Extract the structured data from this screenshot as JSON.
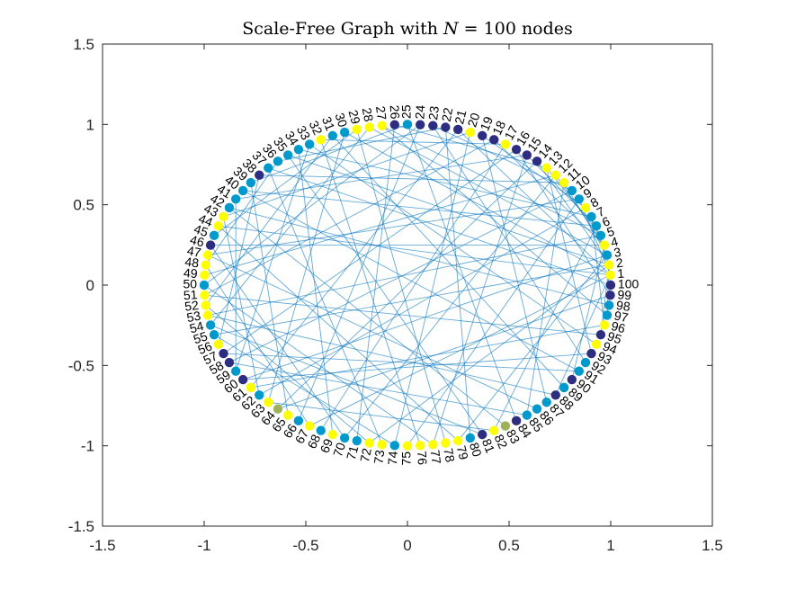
{
  "chart_data": {
    "type": "scatter",
    "title": {
      "prefix": "Scale-Free Graph with ",
      "variable": "N",
      "suffix": " = 100 nodes"
    },
    "xlabel": "",
    "ylabel": "",
    "xlim": [
      -1.5,
      1.5
    ],
    "ylim": [
      -1.5,
      1.5
    ],
    "xticks": [
      -1.5,
      -1,
      -0.5,
      0,
      0.5,
      1,
      1.5
    ],
    "xtick_labels": [
      "-1.5",
      "-1",
      "-0.5",
      "0",
      "0.5",
      "1",
      "1.5"
    ],
    "yticks": [
      -1.5,
      -1,
      -0.5,
      0,
      0.5,
      1,
      1.5
    ],
    "ytick_labels": [
      "-1.5",
      "-1",
      "-0.5",
      "0",
      "0.5",
      "1",
      "1.5"
    ],
    "grid": false,
    "layout": "circle",
    "node_count": 100,
    "node_labels": [
      "1",
      "2",
      "3",
      "4",
      "5",
      "6",
      "7",
      "8",
      "9",
      "10",
      "11",
      "12",
      "13",
      "14",
      "15",
      "16",
      "17",
      "18",
      "19",
      "20",
      "21",
      "22",
      "23",
      "24",
      "25",
      "26",
      "27",
      "28",
      "29",
      "30",
      "31",
      "32",
      "33",
      "34",
      "35",
      "36",
      "37",
      "38",
      "39",
      "40",
      "41",
      "42",
      "43",
      "44",
      "45",
      "46",
      "47",
      "48",
      "49",
      "50",
      "51",
      "52",
      "53",
      "54",
      "55",
      "56",
      "57",
      "58",
      "59",
      "60",
      "61",
      "62",
      "63",
      "64",
      "65",
      "66",
      "67",
      "68",
      "69",
      "70",
      "71",
      "72",
      "73",
      "74",
      "75",
      "76",
      "77",
      "78",
      "79",
      "80",
      "81",
      "82",
      "83",
      "84",
      "85",
      "86",
      "87",
      "88",
      "89",
      "90",
      "91",
      "92",
      "93",
      "94",
      "95",
      "96",
      "97",
      "98",
      "99",
      "100"
    ],
    "node_colors": [
      "#FFFF00",
      "#FFFF00",
      "#0099CC",
      "#FFFF00",
      "#0099CC",
      "#0099CC",
      "#0099CC",
      "#FFFF00",
      "#0099CC",
      "#0099CC",
      "#FFFF00",
      "#FFFF00",
      "#FFFF00",
      "#2E2E80",
      "#2E2E80",
      "#2E2E80",
      "#FFFF00",
      "#2E2E80",
      "#2E2E80",
      "#FFFF00",
      "#2E2E80",
      "#2E2E80",
      "#2E2E80",
      "#2E2E80",
      "#0099CC",
      "#2E2E80",
      "#FFFF00",
      "#FFFF00",
      "#FFFF00",
      "#0099CC",
      "#0099CC",
      "#FFFF00",
      "#0099CC",
      "#0099CC",
      "#0099CC",
      "#0099CC",
      "#0099CC",
      "#2E2E80",
      "#0099CC",
      "#0099CC",
      "#0099CC",
      "#0099CC",
      "#FFFF00",
      "#FFFF00",
      "#0099CC",
      "#2E2E80",
      "#FFFF00",
      "#FFFF00",
      "#FFFF00",
      "#0099CC",
      "#FFFF00",
      "#FFFF00",
      "#FFFF00",
      "#0099CC",
      "#0099CC",
      "#FFFF00",
      "#2E2E80",
      "#2E2E80",
      "#0099CC",
      "#2E2E80",
      "#FFFF00",
      "#0099CC",
      "#FFFF00",
      "#9FB25A",
      "#FFFF00",
      "#0099CC",
      "#FFFF00",
      "#0099CC",
      "#FFFF00",
      "#0099CC",
      "#0099CC",
      "#FFFF00",
      "#FFFF00",
      "#0099CC",
      "#FFFF00",
      "#FFFF00",
      "#FFFF00",
      "#FFFF00",
      "#FFFF00",
      "#0099CC",
      "#2E2E80",
      "#FFFF00",
      "#9FB25A",
      "#2E2E80",
      "#0099CC",
      "#0099CC",
      "#0099CC",
      "#2E2E80",
      "#0099CC",
      "#2E2E80",
      "#0099CC",
      "#0099CC",
      "#2E2E80",
      "#FFFF00",
      "#2E2E80",
      "#FFFF00",
      "#0099CC",
      "#0099CC",
      "#2E2E80",
      "#2E2E80"
    ],
    "edge_color": "#0072BD",
    "edges": [
      [
        1,
        21
      ],
      [
        1,
        44
      ],
      [
        1,
        67
      ],
      [
        1,
        88
      ],
      [
        1,
        30
      ],
      [
        2,
        55
      ],
      [
        2,
        14
      ],
      [
        2,
        72
      ],
      [
        2,
        95
      ],
      [
        2,
        35
      ],
      [
        3,
        28
      ],
      [
        3,
        60
      ],
      [
        3,
        79
      ],
      [
        4,
        46
      ],
      [
        4,
        18
      ],
      [
        4,
        90
      ],
      [
        5,
        27
      ],
      [
        5,
        53
      ],
      [
        6,
        82
      ],
      [
        6,
        40
      ],
      [
        7,
        96
      ],
      [
        7,
        34
      ],
      [
        8,
        62
      ],
      [
        8,
        19
      ],
      [
        9,
        75
      ],
      [
        9,
        47
      ],
      [
        10,
        58
      ],
      [
        10,
        23
      ],
      [
        11,
        85
      ],
      [
        11,
        38
      ],
      [
        12,
        70
      ],
      [
        12,
        49
      ],
      [
        13,
        93
      ],
      [
        13,
        26
      ],
      [
        14,
        64
      ],
      [
        15,
        41
      ],
      [
        15,
        77
      ],
      [
        16,
        57
      ],
      [
        16,
        99
      ],
      [
        17,
        32
      ],
      [
        17,
        68
      ],
      [
        18,
        51
      ],
      [
        19,
        87
      ],
      [
        20,
        43
      ],
      [
        20,
        74
      ],
      [
        21,
        61
      ],
      [
        22,
        80
      ],
      [
        22,
        36
      ],
      [
        23,
        92
      ],
      [
        24,
        50
      ],
      [
        24,
        66
      ],
      [
        25,
        39
      ],
      [
        25,
        84
      ],
      [
        26,
        71
      ],
      [
        27,
        97
      ],
      [
        28,
        54
      ],
      [
        29,
        78
      ],
      [
        29,
        45
      ],
      [
        30,
        63
      ],
      [
        31,
        89
      ],
      [
        31,
        52
      ],
      [
        32,
        76
      ],
      [
        33,
        59
      ],
      [
        33,
        94
      ],
      [
        34,
        69
      ],
      [
        35,
        81
      ],
      [
        36,
        48
      ],
      [
        37,
        73
      ],
      [
        37,
        100
      ],
      [
        38,
        56
      ],
      [
        39,
        65
      ],
      [
        40,
        91
      ],
      [
        41,
        59
      ],
      [
        42,
        83
      ],
      [
        42,
        98
      ],
      [
        43,
        62
      ],
      [
        44,
        79
      ],
      [
        46,
        70
      ],
      [
        47,
        86
      ],
      [
        48,
        67
      ],
      [
        50,
        77
      ],
      [
        51,
        95
      ],
      [
        52,
        72
      ],
      [
        53,
        88
      ],
      [
        54,
        81
      ],
      [
        55,
        74
      ],
      [
        57,
        91
      ],
      [
        58,
        85
      ],
      [
        60,
        93
      ],
      [
        61,
        96
      ],
      [
        63,
        82
      ],
      [
        64,
        99
      ],
      [
        1,
        9
      ],
      [
        2,
        7
      ],
      [
        3,
        11
      ],
      [
        4,
        12
      ],
      [
        5,
        13
      ],
      [
        6,
        15
      ],
      [
        1,
        98
      ],
      [
        2,
        97
      ]
    ]
  }
}
